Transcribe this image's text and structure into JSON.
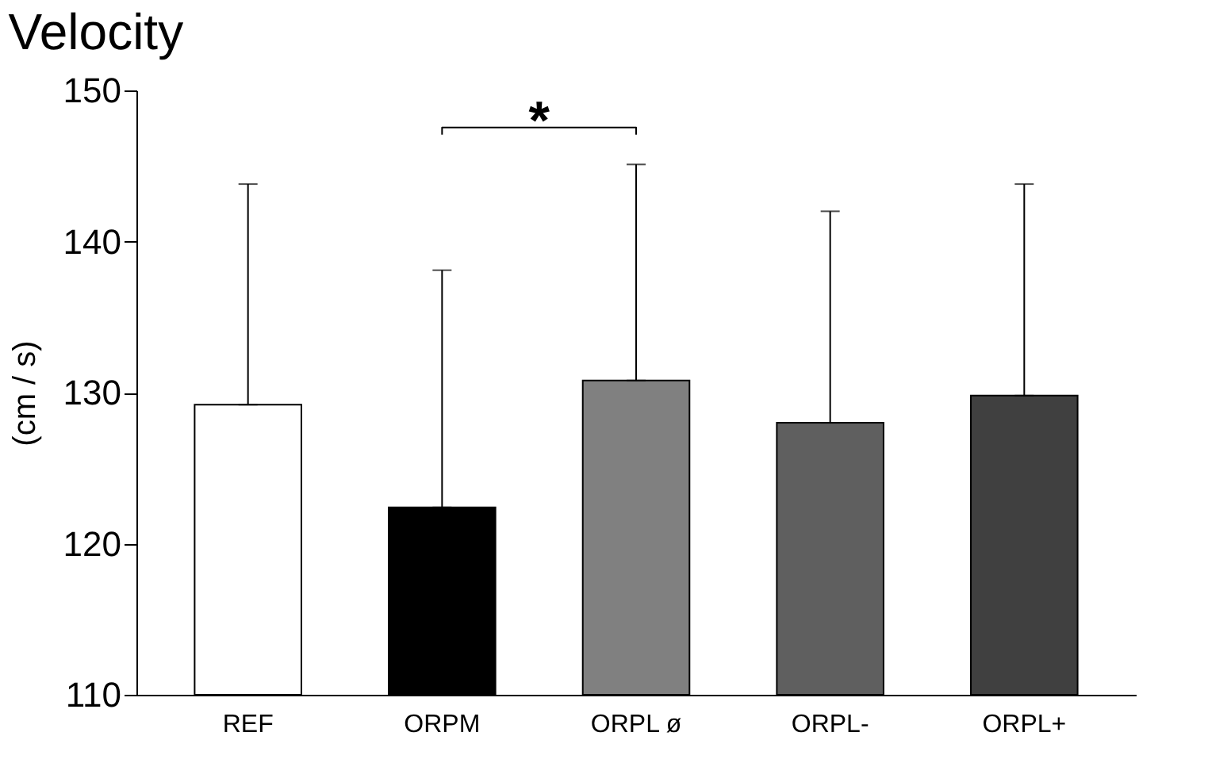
{
  "chart_data": {
    "type": "bar",
    "title": "Velocity",
    "ylabel": "(cm / s)",
    "categories": [
      "REF",
      "ORPM",
      "ORPL ø",
      "ORPL-",
      "ORPL+"
    ],
    "values": [
      129.2,
      122.4,
      130.8,
      128.0,
      129.8
    ],
    "colors": [
      "#ffffff",
      "#000000",
      "#808080",
      "#5f5f5f",
      "#404040"
    ],
    "errors": [
      [
        129.2,
        143.8
      ],
      [
        122.4,
        138.1
      ],
      [
        130.8,
        145.1
      ],
      [
        128.0,
        142.0
      ],
      [
        129.8,
        143.8
      ]
    ],
    "ylim": [
      110,
      150
    ],
    "yticks": [
      110,
      120,
      130,
      140,
      150
    ],
    "annotations": [
      "*"
    ],
    "grid": false,
    "legend": false
  }
}
